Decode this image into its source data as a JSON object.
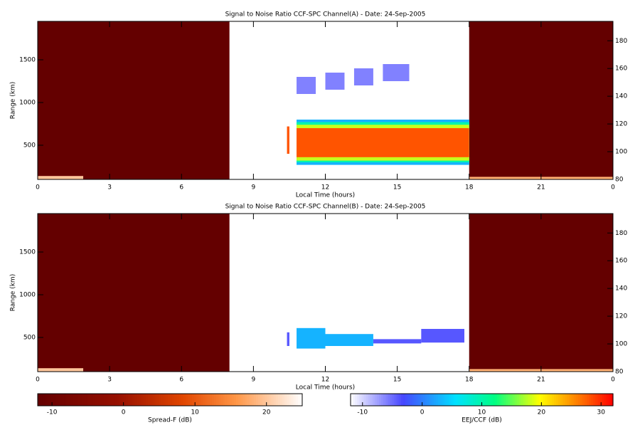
{
  "panels": [
    {
      "title": "Signal to Noise Ratio CCF-SPC Channel(A) - Date: 24-Sep-2005",
      "xlabel": "Local Time (hours)",
      "ylabel": "Range (km)",
      "xlim": [
        0,
        24
      ],
      "xticks": [
        0,
        3,
        6,
        9,
        12,
        15,
        18,
        21,
        {
          "value": 24,
          "label": "0"
        }
      ],
      "ylim": [
        100,
        1950
      ],
      "yticks": [
        500,
        1000,
        1500
      ],
      "y2lim": [
        80,
        194
      ],
      "y2ticks": [
        80,
        100,
        120,
        140,
        160,
        180
      ],
      "patches": [
        {
          "x0": 0,
          "x1": 8,
          "y0": 100,
          "y1": 1950,
          "value": -12,
          "cmap": 0
        },
        {
          "x0": 18,
          "x1": 24,
          "y0": 100,
          "y1": 1950,
          "value": -12,
          "cmap": 0
        },
        {
          "x0": 0,
          "x1": 1.9,
          "y0": 100,
          "y1": 140,
          "value": 20,
          "cmap": 0
        },
        {
          "x0": 18,
          "x1": 24,
          "y0": 100,
          "y1": 130,
          "value": 18,
          "cmap": 0
        },
        {
          "x0": 10.4,
          "x1": 10.5,
          "y0": 400,
          "y1": 720,
          "value": 28,
          "cmap": 1
        },
        {
          "x0": 10.8,
          "x1": 18,
          "y0": 270,
          "y1": 800,
          "value": 3,
          "cmap": 1
        },
        {
          "x0": 10.8,
          "x1": 18,
          "y0": 300,
          "y1": 770,
          "value": 10,
          "cmap": 1
        },
        {
          "x0": 10.8,
          "x1": 18,
          "y0": 320,
          "y1": 740,
          "value": 18,
          "cmap": 1
        },
        {
          "x0": 10.8,
          "x1": 18,
          "y0": 360,
          "y1": 700,
          "value": 28,
          "cmap": 1
        },
        {
          "x0": 10.8,
          "x1": 11.6,
          "y0": 1100,
          "y1": 1300,
          "value": -6,
          "cmap": 1
        },
        {
          "x0": 12,
          "x1": 12.8,
          "y0": 1150,
          "y1": 1350,
          "value": -6,
          "cmap": 1
        },
        {
          "x0": 13.2,
          "x1": 14,
          "y0": 1200,
          "y1": 1400,
          "value": -6,
          "cmap": 1
        },
        {
          "x0": 14.4,
          "x1": 15.5,
          "y0": 1250,
          "y1": 1450,
          "value": -6,
          "cmap": 1
        }
      ]
    },
    {
      "title": "Signal to Noise Ratio CCF-SPC Channel(B) - Date: 24-Sep-2005",
      "xlabel": "Local Time (hours)",
      "ylabel": "Range (km)",
      "xlim": [
        0,
        24
      ],
      "xticks": [
        0,
        3,
        6,
        9,
        12,
        15,
        18,
        21,
        {
          "value": 24,
          "label": "0"
        }
      ],
      "ylim": [
        100,
        1950
      ],
      "yticks": [
        500,
        1000,
        1500
      ],
      "y2lim": [
        80,
        194
      ],
      "y2ticks": [
        80,
        100,
        120,
        140,
        160,
        180
      ],
      "patches": [
        {
          "x0": 0,
          "x1": 8,
          "y0": 100,
          "y1": 1950,
          "value": -12,
          "cmap": 0
        },
        {
          "x0": 18,
          "x1": 24,
          "y0": 100,
          "y1": 1950,
          "value": -12,
          "cmap": 0
        },
        {
          "x0": 0,
          "x1": 1.9,
          "y0": 100,
          "y1": 140,
          "value": 20,
          "cmap": 0
        },
        {
          "x0": 18,
          "x1": 24,
          "y0": 100,
          "y1": 130,
          "value": 18,
          "cmap": 0
        },
        {
          "x0": 10.4,
          "x1": 10.5,
          "y0": 400,
          "y1": 560,
          "value": -4,
          "cmap": 1
        },
        {
          "x0": 10.8,
          "x1": 12,
          "y0": 370,
          "y1": 610,
          "value": 3,
          "cmap": 1
        },
        {
          "x0": 12,
          "x1": 14,
          "y0": 400,
          "y1": 540,
          "value": 3,
          "cmap": 1
        },
        {
          "x0": 14,
          "x1": 16,
          "y0": 430,
          "y1": 480,
          "value": -4,
          "cmap": 1
        },
        {
          "x0": 16,
          "x1": 17.8,
          "y0": 440,
          "y1": 600,
          "value": -4,
          "cmap": 1
        }
      ]
    }
  ],
  "colorbars": [
    {
      "label": "Spread-F (dB)",
      "lim": [
        -12,
        25
      ],
      "ticks": [
        -10,
        0,
        10,
        20
      ]
    },
    {
      "label": "EEJ/CCF (dB)",
      "lim": [
        -12,
        32
      ],
      "ticks": [
        -10,
        0,
        10,
        20,
        30
      ]
    }
  ]
}
